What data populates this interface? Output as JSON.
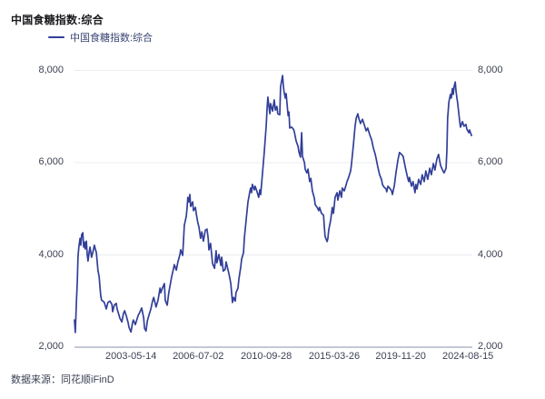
{
  "title": "中国食糖指数:综合",
  "legend": {
    "label": "中国食糖指数:综合"
  },
  "footer": {
    "source": "数据来源：同花顺iFinD"
  },
  "colors": {
    "line": "#323f99",
    "axis": "#aeb6c6",
    "grid": "#ebecf2",
    "labels": "#3d4254",
    "title": "#1b1b1f",
    "legend_text": "#3a4573"
  },
  "chart_data": {
    "type": "line",
    "title": "中国食糖指数:综合",
    "series_name": "中国食糖指数:综合",
    "xlabel": "",
    "ylabel": "",
    "ylim": [
      2000,
      8000
    ],
    "y_ticks": [
      2000,
      4000,
      6000,
      8000
    ],
    "y_tick_labels": [
      "2,000",
      "4,000",
      "6,000",
      "8,000"
    ],
    "y_axis_sides": [
      "left",
      "right"
    ],
    "x_tick_labels": [
      "2003-05-14",
      "2006-07-02",
      "2010-09-28",
      "2015-03-26",
      "2019-11-20",
      "2024-08-15"
    ],
    "x_tick_positions": [
      0.142,
      0.311,
      0.482,
      0.653,
      0.82,
      0.989
    ],
    "grid": "horizontal",
    "legend_position": "top-left",
    "points": [
      [
        0.0,
        2590
      ],
      [
        0.002,
        2320
      ],
      [
        0.005,
        3020
      ],
      [
        0.007,
        3420
      ],
      [
        0.009,
        3970
      ],
      [
        0.011,
        4170
      ],
      [
        0.014,
        4360
      ],
      [
        0.016,
        4210
      ],
      [
        0.018,
        4440
      ],
      [
        0.021,
        4480
      ],
      [
        0.023,
        4170
      ],
      [
        0.025,
        4280
      ],
      [
        0.027,
        4130
      ],
      [
        0.03,
        4300
      ],
      [
        0.032,
        4010
      ],
      [
        0.034,
        3870
      ],
      [
        0.037,
        4070
      ],
      [
        0.039,
        4170
      ],
      [
        0.043,
        3950
      ],
      [
        0.046,
        4050
      ],
      [
        0.05,
        4210
      ],
      [
        0.053,
        4110
      ],
      [
        0.055,
        4050
      ],
      [
        0.057,
        3850
      ],
      [
        0.059,
        3670
      ],
      [
        0.062,
        3520
      ],
      [
        0.064,
        3320
      ],
      [
        0.066,
        3120
      ],
      [
        0.068,
        3020
      ],
      [
        0.073,
        2990
      ],
      [
        0.075,
        2970
      ],
      [
        0.08,
        2830
      ],
      [
        0.084,
        2970
      ],
      [
        0.089,
        3000
      ],
      [
        0.094,
        2930
      ],
      [
        0.096,
        2770
      ],
      [
        0.1,
        2910
      ],
      [
        0.105,
        2950
      ],
      [
        0.107,
        2830
      ],
      [
        0.112,
        2690
      ],
      [
        0.114,
        2630
      ],
      [
        0.119,
        2550
      ],
      [
        0.123,
        2730
      ],
      [
        0.126,
        2790
      ],
      [
        0.13,
        2690
      ],
      [
        0.135,
        2530
      ],
      [
        0.137,
        2430
      ],
      [
        0.142,
        2330
      ],
      [
        0.146,
        2530
      ],
      [
        0.148,
        2590
      ],
      [
        0.153,
        2490
      ],
      [
        0.158,
        2630
      ],
      [
        0.16,
        2690
      ],
      [
        0.164,
        2750
      ],
      [
        0.169,
        2850
      ],
      [
        0.174,
        2630
      ],
      [
        0.176,
        2410
      ],
      [
        0.18,
        2350
      ],
      [
        0.183,
        2570
      ],
      [
        0.187,
        2690
      ],
      [
        0.192,
        2830
      ],
      [
        0.196,
        2990
      ],
      [
        0.199,
        3080
      ],
      [
        0.203,
        2950
      ],
      [
        0.205,
        2870
      ],
      [
        0.21,
        3020
      ],
      [
        0.215,
        3280
      ],
      [
        0.217,
        3180
      ],
      [
        0.221,
        3280
      ],
      [
        0.226,
        3380
      ],
      [
        0.228,
        3020
      ],
      [
        0.233,
        2910
      ],
      [
        0.237,
        3180
      ],
      [
        0.24,
        3320
      ],
      [
        0.244,
        3520
      ],
      [
        0.249,
        3710
      ],
      [
        0.251,
        3790
      ],
      [
        0.256,
        3670
      ],
      [
        0.26,
        3850
      ],
      [
        0.265,
        4010
      ],
      [
        0.267,
        4110
      ],
      [
        0.272,
        3990
      ],
      [
        0.274,
        4300
      ],
      [
        0.276,
        4640
      ],
      [
        0.281,
        4840
      ],
      [
        0.283,
        5030
      ],
      [
        0.285,
        5250
      ],
      [
        0.288,
        5150
      ],
      [
        0.29,
        5310
      ],
      [
        0.292,
        5050
      ],
      [
        0.297,
        5150
      ],
      [
        0.299,
        4960
      ],
      [
        0.304,
        5030
      ],
      [
        0.306,
        4900
      ],
      [
        0.31,
        4700
      ],
      [
        0.313,
        4600
      ],
      [
        0.317,
        4360
      ],
      [
        0.32,
        4500
      ],
      [
        0.324,
        4300
      ],
      [
        0.329,
        4540
      ],
      [
        0.333,
        4560
      ],
      [
        0.336,
        4360
      ],
      [
        0.338,
        4110
      ],
      [
        0.342,
        4250
      ],
      [
        0.347,
        3810
      ],
      [
        0.352,
        3710
      ],
      [
        0.356,
        4090
      ],
      [
        0.358,
        3830
      ],
      [
        0.363,
        4010
      ],
      [
        0.368,
        3770
      ],
      [
        0.37,
        3950
      ],
      [
        0.374,
        3650
      ],
      [
        0.379,
        3690
      ],
      [
        0.381,
        3850
      ],
      [
        0.386,
        3670
      ],
      [
        0.39,
        3520
      ],
      [
        0.393,
        3380
      ],
      [
        0.395,
        3180
      ],
      [
        0.397,
        2970
      ],
      [
        0.4,
        3080
      ],
      [
        0.404,
        3000
      ],
      [
        0.406,
        3180
      ],
      [
        0.411,
        3280
      ],
      [
        0.413,
        3460
      ],
      [
        0.418,
        3750
      ],
      [
        0.42,
        3910
      ],
      [
        0.425,
        4050
      ],
      [
        0.427,
        4360
      ],
      [
        0.432,
        4800
      ],
      [
        0.436,
        5150
      ],
      [
        0.441,
        5390
      ],
      [
        0.443,
        5450
      ],
      [
        0.445,
        5350
      ],
      [
        0.447,
        5530
      ],
      [
        0.452,
        5410
      ],
      [
        0.454,
        5490
      ],
      [
        0.459,
        5370
      ],
      [
        0.463,
        5250
      ],
      [
        0.466,
        5410
      ],
      [
        0.468,
        5310
      ],
      [
        0.473,
        5820
      ],
      [
        0.477,
        6220
      ],
      [
        0.482,
        6810
      ],
      [
        0.484,
        7160
      ],
      [
        0.486,
        7420
      ],
      [
        0.489,
        7200
      ],
      [
        0.491,
        7060
      ],
      [
        0.493,
        7280
      ],
      [
        0.498,
        7120
      ],
      [
        0.5,
        7240
      ],
      [
        0.502,
        7360
      ],
      [
        0.505,
        7140
      ],
      [
        0.509,
        7220
      ],
      [
        0.511,
        7060
      ],
      [
        0.516,
        7040
      ],
      [
        0.518,
        7650
      ],
      [
        0.523,
        7890
      ],
      [
        0.525,
        7650
      ],
      [
        0.527,
        7530
      ],
      [
        0.53,
        7400
      ],
      [
        0.532,
        7500
      ],
      [
        0.537,
        7020
      ],
      [
        0.539,
        7100
      ],
      [
        0.541,
        6750
      ],
      [
        0.546,
        6770
      ],
      [
        0.55,
        6730
      ],
      [
        0.552,
        6690
      ],
      [
        0.557,
        6470
      ],
      [
        0.562,
        6350
      ],
      [
        0.564,
        6240
      ],
      [
        0.568,
        6120
      ],
      [
        0.571,
        6650
      ],
      [
        0.573,
        6140
      ],
      [
        0.578,
        6000
      ],
      [
        0.58,
        5860
      ],
      [
        0.584,
        5780
      ],
      [
        0.587,
        5860
      ],
      [
        0.591,
        5590
      ],
      [
        0.594,
        5660
      ],
      [
        0.598,
        5390
      ],
      [
        0.603,
        5230
      ],
      [
        0.605,
        5090
      ],
      [
        0.61,
        5030
      ],
      [
        0.614,
        4960
      ],
      [
        0.616,
        5030
      ],
      [
        0.621,
        4900
      ],
      [
        0.626,
        4860
      ],
      [
        0.628,
        4600
      ],
      [
        0.63,
        4400
      ],
      [
        0.635,
        4290
      ],
      [
        0.637,
        4360
      ],
      [
        0.639,
        4540
      ],
      [
        0.644,
        4760
      ],
      [
        0.648,
        5030
      ],
      [
        0.651,
        4900
      ],
      [
        0.655,
        5250
      ],
      [
        0.66,
        5350
      ],
      [
        0.662,
        5190
      ],
      [
        0.667,
        5390
      ],
      [
        0.671,
        5250
      ],
      [
        0.673,
        5450
      ],
      [
        0.678,
        5390
      ],
      [
        0.683,
        5530
      ],
      [
        0.685,
        5590
      ],
      [
        0.689,
        5680
      ],
      [
        0.694,
        5820
      ],
      [
        0.696,
        5940
      ],
      [
        0.701,
        6370
      ],
      [
        0.705,
        6770
      ],
      [
        0.708,
        6960
      ],
      [
        0.712,
        7060
      ],
      [
        0.715,
        6950
      ],
      [
        0.719,
        6850
      ],
      [
        0.724,
        6940
      ],
      [
        0.728,
        6830
      ],
      [
        0.733,
        6690
      ],
      [
        0.737,
        6750
      ],
      [
        0.742,
        6610
      ],
      [
        0.747,
        6490
      ],
      [
        0.751,
        6330
      ],
      [
        0.756,
        6180
      ],
      [
        0.758,
        6100
      ],
      [
        0.762,
        5920
      ],
      [
        0.767,
        5740
      ],
      [
        0.772,
        5630
      ],
      [
        0.774,
        5530
      ],
      [
        0.778,
        5470
      ],
      [
        0.783,
        5430
      ],
      [
        0.785,
        5370
      ],
      [
        0.788,
        5490
      ],
      [
        0.792,
        5450
      ],
      [
        0.797,
        5390
      ],
      [
        0.799,
        5310
      ],
      [
        0.804,
        5510
      ],
      [
        0.808,
        5780
      ],
      [
        0.813,
        6060
      ],
      [
        0.817,
        6220
      ],
      [
        0.822,
        6180
      ],
      [
        0.826,
        6140
      ],
      [
        0.831,
        5920
      ],
      [
        0.836,
        5720
      ],
      [
        0.84,
        5590
      ],
      [
        0.842,
        5680
      ],
      [
        0.847,
        5490
      ],
      [
        0.851,
        5590
      ],
      [
        0.856,
        5350
      ],
      [
        0.858,
        5530
      ],
      [
        0.861,
        5430
      ],
      [
        0.865,
        5640
      ],
      [
        0.87,
        5530
      ],
      [
        0.874,
        5740
      ],
      [
        0.879,
        5590
      ],
      [
        0.883,
        5820
      ],
      [
        0.888,
        5640
      ],
      [
        0.893,
        5880
      ],
      [
        0.897,
        5740
      ],
      [
        0.902,
        5980
      ],
      [
        0.906,
        5840
      ],
      [
        0.911,
        6080
      ],
      [
        0.915,
        6180
      ],
      [
        0.92,
        5940
      ],
      [
        0.925,
        5840
      ],
      [
        0.929,
        5780
      ],
      [
        0.934,
        5880
      ],
      [
        0.936,
        6270
      ],
      [
        0.938,
        6960
      ],
      [
        0.941,
        7320
      ],
      [
        0.945,
        7480
      ],
      [
        0.947,
        7400
      ],
      [
        0.95,
        7610
      ],
      [
        0.952,
        7480
      ],
      [
        0.954,
        7650
      ],
      [
        0.957,
        7750
      ],
      [
        0.959,
        7560
      ],
      [
        0.961,
        7420
      ],
      [
        0.963,
        7300
      ],
      [
        0.968,
        6910
      ],
      [
        0.97,
        6770
      ],
      [
        0.975,
        6890
      ],
      [
        0.979,
        6790
      ],
      [
        0.984,
        6830
      ],
      [
        0.986,
        6730
      ],
      [
        0.991,
        6650
      ],
      [
        0.993,
        6710
      ],
      [
        0.998,
        6590
      ]
    ]
  }
}
